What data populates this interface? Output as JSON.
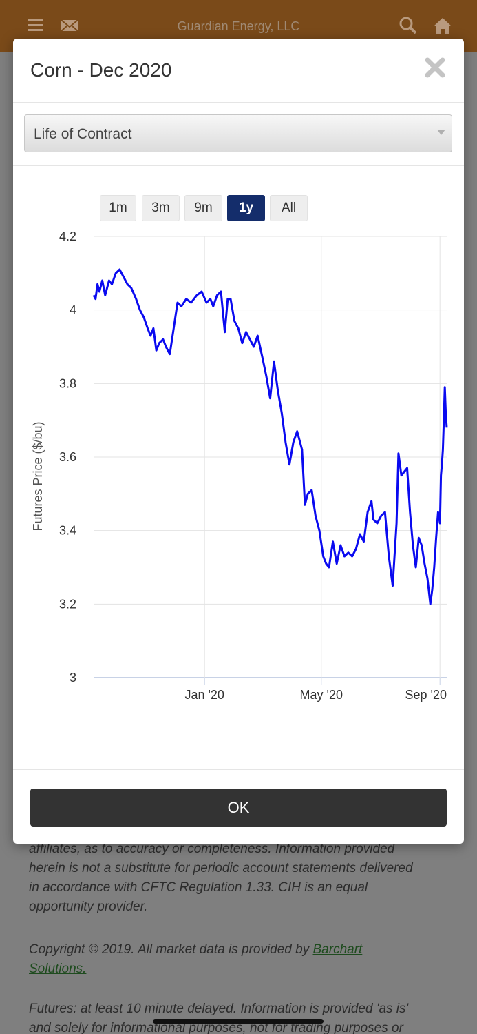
{
  "app": {
    "title": "Guardian Energy, LLC"
  },
  "modal": {
    "title": "Corn - Dec 2020",
    "period_select": {
      "selected": "Life of Contract"
    },
    "range_buttons": [
      {
        "label": "1m",
        "active": false
      },
      {
        "label": "3m",
        "active": false
      },
      {
        "label": "9m",
        "active": false
      },
      {
        "label": "1y",
        "active": true
      },
      {
        "label": "All",
        "active": false
      }
    ],
    "ok_label": "OK"
  },
  "background": {
    "para1_lines": [
      "affiliates, as to accuracy or completeness. Information provided",
      "herein is not a substitute for periodic account statements delivered",
      "in accordance with CFTC Regulation 1.33. CIH is an equal",
      "opportunity provider."
    ],
    "copyright_text": "Copyright © 2019. All market data is provided by ",
    "copyright_link_1": "Barchart",
    "copyright_link_2": "Solutions.",
    "para3_lines": [
      "Futures: at least 10 minute delayed. Information is provided 'as is'",
      "and solely for informational purposes, not for trading purposes or"
    ]
  },
  "colors": {
    "line": "#0a0af0",
    "active_button": "#142d6b",
    "topbar": "#7a4a19"
  },
  "icons": [
    "menu-icon",
    "mail-icon",
    "search-icon",
    "home-icon",
    "close-icon",
    "chevron-down-icon"
  ],
  "chart_data": {
    "type": "line",
    "title": "",
    "xlabel": "",
    "ylabel": "Futures Price ($/bu)",
    "ylim": [
      3,
      4.2
    ],
    "yticks": [
      3,
      3.2,
      3.4,
      3.6,
      3.8,
      4,
      4.2
    ],
    "yticklabels": [
      "3",
      "3.2",
      "3.4",
      "3.6",
      "3.8",
      "4",
      "4.2"
    ],
    "xticks": [
      "2020-01-01",
      "2020-05-01",
      "2020-09-01"
    ],
    "xticklabels": [
      "Jan '20",
      "May '20",
      "Sep '20"
    ],
    "xlim": [
      "2019-09-08",
      "2020-09-08"
    ],
    "grid": true,
    "series": [
      {
        "values": [
          [
            "2019-09-08",
            4.04
          ],
          [
            "2019-09-10",
            4.03
          ],
          [
            "2019-09-12",
            4.07
          ],
          [
            "2019-09-14",
            4.05
          ],
          [
            "2019-09-17",
            4.08
          ],
          [
            "2019-09-20",
            4.04
          ],
          [
            "2019-09-24",
            4.08
          ],
          [
            "2019-09-27",
            4.07
          ],
          [
            "2019-10-01",
            4.1
          ],
          [
            "2019-10-05",
            4.11
          ],
          [
            "2019-10-09",
            4.09
          ],
          [
            "2019-10-13",
            4.07
          ],
          [
            "2019-10-17",
            4.06
          ],
          [
            "2019-10-22",
            4.03
          ],
          [
            "2019-10-26",
            4.0
          ],
          [
            "2019-10-30",
            3.98
          ],
          [
            "2019-11-03",
            3.95
          ],
          [
            "2019-11-06",
            3.93
          ],
          [
            "2019-11-09",
            3.95
          ],
          [
            "2019-11-12",
            3.89
          ],
          [
            "2019-11-15",
            3.91
          ],
          [
            "2019-11-19",
            3.92
          ],
          [
            "2019-11-22",
            3.9
          ],
          [
            "2019-11-26",
            3.88
          ],
          [
            "2019-11-30",
            3.95
          ],
          [
            "2019-12-04",
            4.02
          ],
          [
            "2019-12-08",
            4.01
          ],
          [
            "2019-12-13",
            4.03
          ],
          [
            "2019-12-18",
            4.02
          ],
          [
            "2019-12-24",
            4.04
          ],
          [
            "2019-12-29",
            4.05
          ],
          [
            "2020-01-03",
            4.02
          ],
          [
            "2020-01-07",
            4.03
          ],
          [
            "2020-01-10",
            4.01
          ],
          [
            "2020-01-14",
            4.04
          ],
          [
            "2020-01-18",
            4.05
          ],
          [
            "2020-01-22",
            3.94
          ],
          [
            "2020-01-25",
            4.03
          ],
          [
            "2020-01-28",
            4.03
          ],
          [
            "2020-02-01",
            3.97
          ],
          [
            "2020-02-05",
            3.95
          ],
          [
            "2020-02-09",
            3.91
          ],
          [
            "2020-02-13",
            3.94
          ],
          [
            "2020-02-17",
            3.92
          ],
          [
            "2020-02-21",
            3.9
          ],
          [
            "2020-02-25",
            3.93
          ],
          [
            "2020-03-01",
            3.87
          ],
          [
            "2020-03-05",
            3.82
          ],
          [
            "2020-03-09",
            3.76
          ],
          [
            "2020-03-13",
            3.86
          ],
          [
            "2020-03-17",
            3.78
          ],
          [
            "2020-03-21",
            3.72
          ],
          [
            "2020-03-25",
            3.64
          ],
          [
            "2020-03-29",
            3.58
          ],
          [
            "2020-04-02",
            3.64
          ],
          [
            "2020-04-06",
            3.67
          ],
          [
            "2020-04-11",
            3.62
          ],
          [
            "2020-04-14",
            3.47
          ],
          [
            "2020-04-17",
            3.5
          ],
          [
            "2020-04-21",
            3.51
          ],
          [
            "2020-04-25",
            3.44
          ],
          [
            "2020-04-29",
            3.4
          ],
          [
            "2020-05-03",
            3.33
          ],
          [
            "2020-05-06",
            3.31
          ],
          [
            "2020-05-09",
            3.3
          ],
          [
            "2020-05-13",
            3.37
          ],
          [
            "2020-05-17",
            3.31
          ],
          [
            "2020-05-21",
            3.36
          ],
          [
            "2020-05-25",
            3.33
          ],
          [
            "2020-05-29",
            3.34
          ],
          [
            "2020-06-02",
            3.33
          ],
          [
            "2020-06-06",
            3.35
          ],
          [
            "2020-06-10",
            3.39
          ],
          [
            "2020-06-14",
            3.37
          ],
          [
            "2020-06-18",
            3.45
          ],
          [
            "2020-06-22",
            3.48
          ],
          [
            "2020-06-24",
            3.43
          ],
          [
            "2020-06-28",
            3.42
          ],
          [
            "2020-07-02",
            3.44
          ],
          [
            "2020-07-06",
            3.45
          ],
          [
            "2020-07-10",
            3.33
          ],
          [
            "2020-07-14",
            3.25
          ],
          [
            "2020-07-18",
            3.42
          ],
          [
            "2020-07-20",
            3.61
          ],
          [
            "2020-07-23",
            3.55
          ],
          [
            "2020-07-26",
            3.56
          ],
          [
            "2020-07-29",
            3.57
          ],
          [
            "2020-08-01",
            3.45
          ],
          [
            "2020-08-04",
            3.36
          ],
          [
            "2020-08-07",
            3.3
          ],
          [
            "2020-08-10",
            3.38
          ],
          [
            "2020-08-13",
            3.36
          ],
          [
            "2020-08-16",
            3.31
          ],
          [
            "2020-08-19",
            3.27
          ],
          [
            "2020-08-22",
            3.2
          ],
          [
            "2020-08-24",
            3.24
          ],
          [
            "2020-08-26",
            3.3
          ],
          [
            "2020-08-28",
            3.38
          ],
          [
            "2020-08-30",
            3.45
          ],
          [
            "2020-09-01",
            3.42
          ],
          [
            "2020-09-02",
            3.55
          ],
          [
            "2020-09-03",
            3.58
          ],
          [
            "2020-09-04",
            3.62
          ],
          [
            "2020-09-05",
            3.7
          ],
          [
            "2020-09-06",
            3.79
          ],
          [
            "2020-09-07",
            3.72
          ],
          [
            "2020-09-08",
            3.68
          ]
        ]
      }
    ]
  }
}
